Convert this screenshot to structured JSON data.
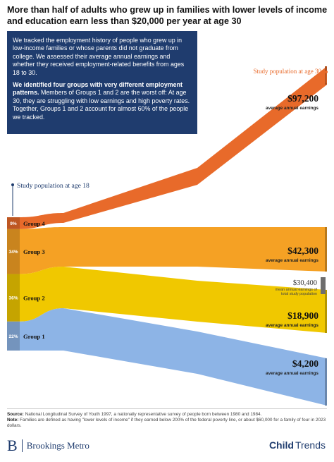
{
  "title": "More than half of adults who grew up in families with lower levels of income and education earn less than $20,000 per year at age 30",
  "info_box": {
    "para1": "We tracked the employment history of people who grew up in low-income families or whose parents did not graduate from college. We assessed their average annual earnings and whether they received employment-related benefits from ages 18 to 30.",
    "para2_bold": "We identified four groups with very different employment patterns.",
    "para2_rest": " Members of Groups 1 and 2 are the worst off: At age 30, they are struggling with low earnings and high poverty rates. Together, Groups 1 and 2 account for almost 60% of the people we tracked."
  },
  "chart_data": {
    "type": "area",
    "label_start": "Study population at age 18",
    "label_end": "Study population at age 30",
    "earnings_caption": "average annual earnings",
    "groups": [
      {
        "name": "Group 4",
        "share": "9%",
        "share_value": 9,
        "earnings_at_30": "$97,200",
        "earnings_value": 97200,
        "color": "#e86a2a"
      },
      {
        "name": "Group 3",
        "share": "34%",
        "share_value": 34,
        "earnings_at_30": "$42,300",
        "earnings_value": 42300,
        "color": "#f5a124"
      },
      {
        "name": "Group 2",
        "share": "36%",
        "share_value": 36,
        "earnings_at_30": "$18,900",
        "earnings_value": 18900,
        "color": "#f0c800"
      },
      {
        "name": "Group 1",
        "share": "22%",
        "share_value": 22,
        "earnings_at_30": "$4,200",
        "earnings_value": 4200,
        "color": "#8db4e6"
      }
    ],
    "mean_marker": {
      "value": "$30,400",
      "value_num": 30400,
      "caption_line1": "mean annual earnings of",
      "caption_line2": "total study population",
      "color": "#6d6d6d"
    }
  },
  "footer": {
    "source_label": "Source:",
    "source_text": " National Longitudinal Survey of Youth 1997, a nationally representative survey of people born between 1980 and 1984.",
    "note_label": "Note:",
    "note_text": " Families are defined as having \"lower levels of income\" if they earned below 200% of the federal poverty line, or about $60,000 for a family of four in 2023 dollars."
  },
  "logos": {
    "brookings_mark": "B",
    "brookings_text": "Brookings Metro",
    "childtrends_a": "Child",
    "childtrends_b": "Trends"
  }
}
